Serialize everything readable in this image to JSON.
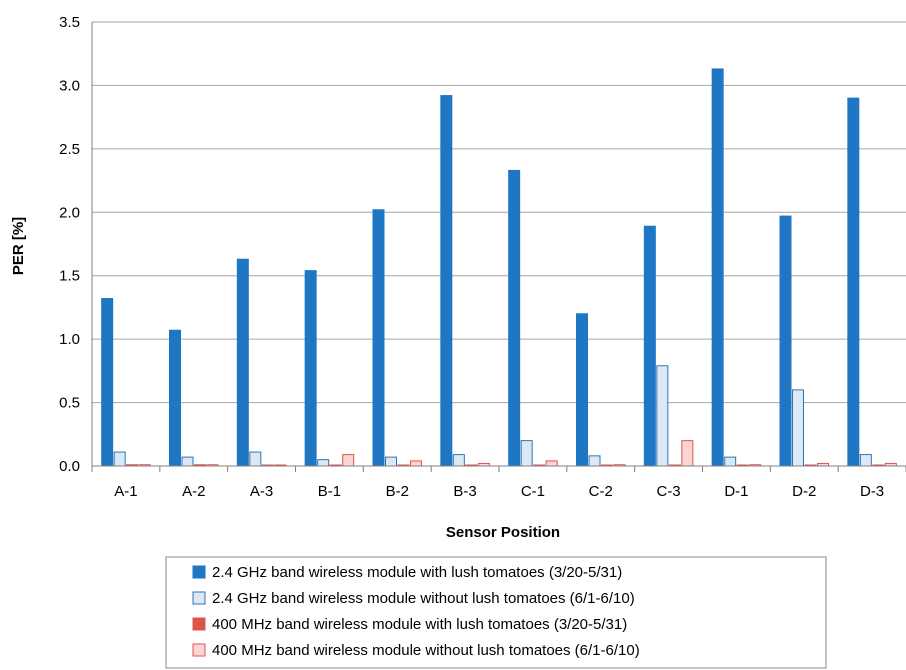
{
  "chart_data": {
    "type": "bar",
    "xlabel": "Sensor Position",
    "ylabel": "PER [%]",
    "ylim": [
      0,
      3.5
    ],
    "yticks": [
      "0.0",
      "0.5",
      "1.0",
      "1.5",
      "2.0",
      "2.5",
      "3.0",
      "3.5"
    ],
    "grid": true,
    "legend_position": "bottom",
    "categories": [
      "A-1",
      "A-2",
      "A-3",
      "B-1",
      "B-2",
      "B-3",
      "C-1",
      "C-2",
      "C-3",
      "D-1",
      "D-2",
      "D-3"
    ],
    "series": [
      {
        "name": "2.4 GHz band wireless module with lush tomatoes (3/20-5/31)",
        "fill": "#1f77c4",
        "stroke": "#1f77c4",
        "values": [
          1.32,
          1.07,
          1.63,
          1.54,
          2.02,
          2.92,
          2.33,
          1.2,
          1.89,
          3.13,
          1.97,
          2.9
        ]
      },
      {
        "name": "2.4 GHz band wireless module without lush tomatoes (6/1-6/10)",
        "fill": "#dce9f5",
        "stroke": "#2e75b6",
        "values": [
          0.11,
          0.07,
          0.11,
          0.05,
          0.07,
          0.09,
          0.2,
          0.08,
          0.79,
          0.07,
          0.6,
          0.09
        ]
      },
      {
        "name": "400 MHz band wireless module with lush tomatoes (3/20-5/31)",
        "fill": "#e0524f",
        "stroke": "#e0524f",
        "values": [
          0.01,
          0.01,
          0.005,
          0.005,
          0.005,
          0.005,
          0.005,
          0.005,
          0.005,
          0.005,
          0.005,
          0.005
        ]
      },
      {
        "name": "400 MHz band wireless module without lush tomatoes (6/1-6/10)",
        "fill": "#fbd5d4",
        "stroke": "#e0524f",
        "values": [
          0.01,
          0.01,
          0.005,
          0.09,
          0.04,
          0.02,
          0.04,
          0.01,
          0.2,
          0.01,
          0.02,
          0.02
        ]
      }
    ]
  }
}
